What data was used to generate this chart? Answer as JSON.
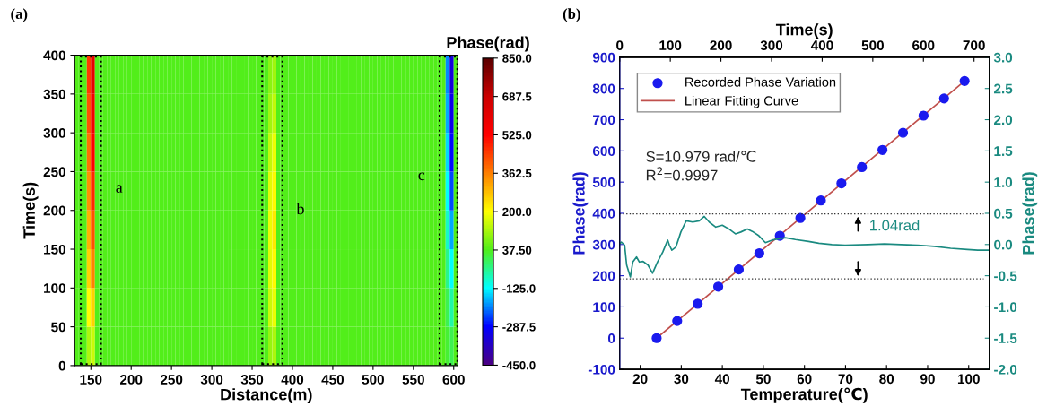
{
  "chart_data": [
    {
      "type": "heatmap",
      "title": "(a)",
      "xlabel": "Distance(m)",
      "ylabel": "Time(s)",
      "clabel": "Phase(rad)",
      "x": [
        132.5,
        137.5,
        142.5,
        147.5,
        152.5,
        157.5,
        162.5,
        167.5,
        172.5,
        177.5,
        182.5,
        187.5,
        192.5,
        197.5,
        202.5,
        207.5,
        212.5,
        217.5,
        222.5,
        227.5,
        232.5,
        237.5,
        242.5,
        247.5,
        252.5,
        257.5,
        262.5,
        267.5,
        272.5,
        277.5,
        282.5,
        287.5,
        292.5,
        297.5,
        302.5,
        307.5,
        312.5,
        317.5,
        322.5,
        327.5,
        332.5,
        337.5,
        342.5,
        347.5,
        352.5,
        357.5,
        362.5,
        367.5,
        372.5,
        377.5,
        382.5,
        387.5,
        392.5,
        397.5,
        402.5,
        407.5,
        412.5,
        417.5,
        422.5,
        427.5,
        432.5,
        437.5,
        442.5,
        447.5,
        452.5,
        457.5,
        462.5,
        467.5,
        472.5,
        477.5,
        482.5,
        487.5,
        492.5,
        497.5,
        502.5,
        507.5,
        512.5,
        517.5,
        522.5,
        527.5,
        532.5,
        537.5,
        542.5,
        547.5,
        552.5,
        557.5,
        562.5,
        567.5,
        572.5,
        577.5,
        582.5,
        587.5,
        592.5,
        597.5,
        602.5
      ],
      "cells": [
        [
          37.5,
          37.5,
          37.5,
          450,
          600,
          37.5,
          37.5,
          37.5,
          37.5,
          37.5,
          37.5,
          37.5,
          37.5,
          37.5,
          37.5,
          37.5,
          37.5,
          37.5,
          37.5,
          37.5,
          37.5,
          37.5,
          37.5,
          37.5,
          37.5,
          37.5,
          37.5,
          37.5,
          37.5,
          37.5,
          37.5,
          37.5,
          37.5,
          37.5,
          37.5,
          37.5,
          37.5,
          37.5,
          37.5,
          37.5,
          37.5,
          37.5,
          37.5,
          37.5,
          37.5,
          37.5,
          37.5,
          37.5,
          90,
          110,
          37.5,
          37.5,
          37.5,
          37.5,
          37.5,
          37.5,
          37.5,
          37.5,
          37.5,
          37.5,
          37.5,
          37.5,
          37.5,
          37.5,
          37.5,
          37.5,
          37.5,
          37.5,
          37.5,
          37.5,
          37.5,
          37.5,
          37.5,
          37.5,
          37.5,
          37.5,
          37.5,
          37.5,
          37.5,
          37.5,
          37.5,
          37.5,
          37.5,
          37.5,
          37.5,
          37.5,
          37.5,
          37.5,
          37.5,
          37.5,
          37.5,
          37.5,
          -200,
          -330,
          37.5
        ],
        [
          37.5,
          37.5,
          37.5,
          420,
          560,
          37.5,
          37.5,
          37.5,
          37.5,
          37.5,
          37.5,
          37.5,
          37.5,
          37.5,
          37.5,
          37.5,
          37.5,
          37.5,
          37.5,
          37.5,
          37.5,
          37.5,
          37.5,
          37.5,
          37.5,
          37.5,
          37.5,
          37.5,
          37.5,
          37.5,
          37.5,
          37.5,
          37.5,
          37.5,
          37.5,
          37.5,
          37.5,
          37.5,
          37.5,
          37.5,
          37.5,
          37.5,
          37.5,
          37.5,
          37.5,
          37.5,
          37.5,
          37.5,
          110,
          140,
          37.5,
          37.5,
          37.5,
          37.5,
          37.5,
          37.5,
          37.5,
          37.5,
          37.5,
          37.5,
          37.5,
          37.5,
          37.5,
          37.5,
          37.5,
          37.5,
          37.5,
          37.5,
          37.5,
          37.5,
          37.5,
          37.5,
          37.5,
          37.5,
          37.5,
          37.5,
          37.5,
          37.5,
          37.5,
          37.5,
          37.5,
          37.5,
          37.5,
          37.5,
          37.5,
          37.5,
          37.5,
          37.5,
          37.5,
          37.5,
          37.5,
          37.5,
          -180,
          -310,
          37.5
        ],
        [
          37.5,
          37.5,
          37.5,
          380,
          520,
          37.5,
          37.5,
          37.5,
          37.5,
          37.5,
          37.5,
          37.5,
          37.5,
          37.5,
          37.5,
          37.5,
          37.5,
          37.5,
          37.5,
          37.5,
          37.5,
          37.5,
          37.5,
          37.5,
          37.5,
          37.5,
          37.5,
          37.5,
          37.5,
          37.5,
          37.5,
          37.5,
          37.5,
          37.5,
          37.5,
          37.5,
          37.5,
          37.5,
          37.5,
          37.5,
          37.5,
          37.5,
          37.5,
          37.5,
          37.5,
          37.5,
          37.5,
          37.5,
          140,
          180,
          37.5,
          37.5,
          37.5,
          37.5,
          37.5,
          37.5,
          37.5,
          37.5,
          37.5,
          37.5,
          37.5,
          37.5,
          37.5,
          37.5,
          37.5,
          37.5,
          37.5,
          37.5,
          37.5,
          37.5,
          37.5,
          37.5,
          37.5,
          37.5,
          37.5,
          37.5,
          37.5,
          37.5,
          37.5,
          37.5,
          37.5,
          37.5,
          37.5,
          37.5,
          37.5,
          37.5,
          37.5,
          37.5,
          37.5,
          37.5,
          37.5,
          37.5,
          -150,
          -280,
          37.5
        ],
        [
          37.5,
          37.5,
          37.5,
          340,
          470,
          37.5,
          37.5,
          37.5,
          37.5,
          37.5,
          37.5,
          37.5,
          37.5,
          37.5,
          37.5,
          37.5,
          37.5,
          37.5,
          37.5,
          37.5,
          37.5,
          37.5,
          37.5,
          37.5,
          37.5,
          37.5,
          37.5,
          37.5,
          37.5,
          37.5,
          37.5,
          37.5,
          37.5,
          37.5,
          37.5,
          37.5,
          37.5,
          37.5,
          37.5,
          37.5,
          37.5,
          37.5,
          37.5,
          37.5,
          37.5,
          37.5,
          37.5,
          37.5,
          170,
          210,
          37.5,
          37.5,
          37.5,
          37.5,
          37.5,
          37.5,
          37.5,
          37.5,
          37.5,
          37.5,
          37.5,
          37.5,
          37.5,
          37.5,
          37.5,
          37.5,
          37.5,
          37.5,
          37.5,
          37.5,
          37.5,
          37.5,
          37.5,
          37.5,
          37.5,
          37.5,
          37.5,
          37.5,
          37.5,
          37.5,
          37.5,
          37.5,
          37.5,
          37.5,
          37.5,
          37.5,
          37.5,
          37.5,
          37.5,
          37.5,
          37.5,
          37.5,
          -120,
          -240,
          37.5
        ],
        [
          37.5,
          37.5,
          37.5,
          300,
          420,
          37.5,
          37.5,
          37.5,
          37.5,
          37.5,
          37.5,
          37.5,
          37.5,
          37.5,
          37.5,
          37.5,
          37.5,
          37.5,
          37.5,
          37.5,
          37.5,
          37.5,
          37.5,
          37.5,
          37.5,
          37.5,
          37.5,
          37.5,
          37.5,
          37.5,
          37.5,
          37.5,
          37.5,
          37.5,
          37.5,
          37.5,
          37.5,
          37.5,
          37.5,
          37.5,
          37.5,
          37.5,
          37.5,
          37.5,
          37.5,
          37.5,
          37.5,
          37.5,
          180,
          230,
          37.5,
          37.5,
          37.5,
          37.5,
          37.5,
          37.5,
          37.5,
          37.5,
          37.5,
          37.5,
          37.5,
          37.5,
          37.5,
          37.5,
          37.5,
          37.5,
          37.5,
          37.5,
          37.5,
          37.5,
          37.5,
          37.5,
          37.5,
          37.5,
          37.5,
          37.5,
          37.5,
          37.5,
          37.5,
          37.5,
          37.5,
          37.5,
          37.5,
          37.5,
          37.5,
          37.5,
          37.5,
          37.5,
          37.5,
          37.5,
          37.5,
          37.5,
          -80,
          -180,
          37.5
        ],
        [
          37.5,
          37.5,
          37.5,
          260,
          360,
          37.5,
          37.5,
          37.5,
          37.5,
          37.5,
          37.5,
          37.5,
          37.5,
          37.5,
          37.5,
          37.5,
          37.5,
          37.5,
          37.5,
          37.5,
          37.5,
          37.5,
          37.5,
          37.5,
          37.5,
          37.5,
          37.5,
          37.5,
          37.5,
          37.5,
          37.5,
          37.5,
          37.5,
          37.5,
          37.5,
          37.5,
          37.5,
          37.5,
          37.5,
          37.5,
          37.5,
          37.5,
          37.5,
          37.5,
          37.5,
          37.5,
          37.5,
          37.5,
          170,
          210,
          37.5,
          37.5,
          37.5,
          37.5,
          37.5,
          37.5,
          37.5,
          37.5,
          37.5,
          37.5,
          37.5,
          37.5,
          37.5,
          37.5,
          37.5,
          37.5,
          37.5,
          37.5,
          37.5,
          37.5,
          37.5,
          37.5,
          37.5,
          37.5,
          37.5,
          37.5,
          37.5,
          37.5,
          37.5,
          37.5,
          37.5,
          37.5,
          37.5,
          37.5,
          37.5,
          37.5,
          37.5,
          37.5,
          37.5,
          37.5,
          37.5,
          37.5,
          -40,
          -120,
          37.5
        ],
        [
          37.5,
          37.5,
          37.5,
          200,
          260,
          37.5,
          37.5,
          37.5,
          37.5,
          37.5,
          37.5,
          37.5,
          37.5,
          37.5,
          37.5,
          37.5,
          37.5,
          37.5,
          37.5,
          37.5,
          37.5,
          37.5,
          37.5,
          37.5,
          37.5,
          37.5,
          37.5,
          37.5,
          37.5,
          37.5,
          37.5,
          37.5,
          37.5,
          37.5,
          37.5,
          37.5,
          37.5,
          37.5,
          37.5,
          37.5,
          37.5,
          37.5,
          37.5,
          37.5,
          37.5,
          37.5,
          37.5,
          37.5,
          150,
          180,
          37.5,
          37.5,
          37.5,
          37.5,
          37.5,
          37.5,
          37.5,
          37.5,
          37.5,
          37.5,
          37.5,
          37.5,
          37.5,
          37.5,
          37.5,
          37.5,
          37.5,
          37.5,
          37.5,
          37.5,
          37.5,
          37.5,
          37.5,
          37.5,
          37.5,
          37.5,
          37.5,
          37.5,
          37.5,
          37.5,
          37.5,
          37.5,
          37.5,
          37.5,
          37.5,
          37.5,
          37.5,
          37.5,
          37.5,
          37.5,
          37.5,
          37.5,
          0,
          -60,
          37.5
        ],
        [
          37.5,
          37.5,
          37.5,
          120,
          150,
          37.5,
          37.5,
          37.5,
          37.5,
          37.5,
          37.5,
          37.5,
          37.5,
          37.5,
          37.5,
          37.5,
          37.5,
          37.5,
          37.5,
          37.5,
          37.5,
          37.5,
          37.5,
          37.5,
          37.5,
          37.5,
          37.5,
          37.5,
          37.5,
          37.5,
          37.5,
          37.5,
          37.5,
          37.5,
          37.5,
          37.5,
          37.5,
          37.5,
          37.5,
          37.5,
          37.5,
          37.5,
          37.5,
          37.5,
          37.5,
          37.5,
          37.5,
          37.5,
          100,
          120,
          37.5,
          37.5,
          37.5,
          37.5,
          37.5,
          37.5,
          37.5,
          37.5,
          37.5,
          37.5,
          37.5,
          37.5,
          37.5,
          37.5,
          37.5,
          37.5,
          37.5,
          37.5,
          37.5,
          37.5,
          37.5,
          37.5,
          37.5,
          37.5,
          37.5,
          37.5,
          37.5,
          37.5,
          37.5,
          37.5,
          37.5,
          37.5,
          37.5,
          37.5,
          37.5,
          37.5,
          37.5,
          37.5,
          37.5,
          37.5,
          37.5,
          37.5,
          20,
          0,
          37.5
        ]
      ],
      "colors": [
        "#4b0082",
        "#0000ff",
        "#00ffff",
        "#50ee1a",
        "#ffff00",
        "#ff8000",
        "#ff0000",
        "#cc0000",
        "#5a0000"
      ],
      "clim": [
        -450,
        850
      ],
      "cticks": [
        {
          "value": 850,
          "label": "850.0"
        },
        {
          "value": 687.5,
          "label": "687.5"
        },
        {
          "value": 525,
          "label": "525.0"
        },
        {
          "value": 362.5,
          "label": "362.5"
        },
        {
          "value": 200,
          "label": "200.0"
        },
        {
          "value": 37.5,
          "label": "37.50"
        },
        {
          "value": -125,
          "label": "-125.0"
        },
        {
          "value": -287.5,
          "label": "-287.5"
        },
        {
          "value": -450,
          "label": "-450.0"
        }
      ],
      "xlim": [
        130,
        605
      ],
      "xticks": [
        150,
        200,
        250,
        300,
        350,
        400,
        450,
        500,
        550,
        600
      ],
      "ylim": [
        0,
        400
      ],
      "yticks": [
        0,
        50,
        100,
        150,
        200,
        250,
        300,
        350,
        400
      ],
      "annotations": [
        "a",
        "b",
        "c"
      ]
    },
    {
      "type": "scatter",
      "title": "(b)",
      "xlabel": "Temperature(℃)",
      "ylabel": "Phase(rad)",
      "y2label": "Phase(rad)",
      "x2label": "Time(s)",
      "xlim": [
        15,
        105
      ],
      "xticks": [
        20,
        30,
        40,
        50,
        60,
        70,
        80,
        90,
        100
      ],
      "ylim": [
        -100,
        900
      ],
      "yticks": [
        -100,
        0,
        100,
        200,
        300,
        400,
        500,
        600,
        700,
        800,
        900
      ],
      "x2lim": [
        0,
        730
      ],
      "x2ticks": [
        0,
        100,
        200,
        300,
        400,
        500,
        600,
        700
      ],
      "y2lim": [
        -2,
        3
      ],
      "y2ticks": [
        {
          "value": -2,
          "label": "-2.0"
        },
        {
          "value": -1.5,
          "label": "-1.5"
        },
        {
          "value": -1,
          "label": "-1.0"
        },
        {
          "value": -0.5,
          "label": "-0.5"
        },
        {
          "value": 0,
          "label": "0.0"
        },
        {
          "value": 0.5,
          "label": "0.5"
        },
        {
          "value": 1,
          "label": "1.0"
        },
        {
          "value": 1.5,
          "label": "1.5"
        },
        {
          "value": 2,
          "label": "2.0"
        },
        {
          "value": 2.5,
          "label": "2.5"
        },
        {
          "value": 3,
          "label": "3.0"
        }
      ],
      "legend": "top left",
      "marker": "circle",
      "grid": false,
      "series": [
        {
          "type": "scatter",
          "name": "Recorded Phase Variation",
          "color": "#1a1aee",
          "x": [
            24,
            29,
            34,
            39,
            44,
            49,
            54,
            59,
            64,
            69,
            74,
            79,
            84,
            89,
            94,
            99
          ],
          "values": [
            0,
            55,
            110,
            165,
            220,
            272,
            328,
            385,
            441,
            496,
            548,
            603,
            658,
            713,
            768,
            824
          ]
        },
        {
          "type": "line",
          "name": "Linear Fitting Curve",
          "color": "#c0504d",
          "marker": "none",
          "x": [
            24,
            99
          ],
          "values": [
            0,
            824
          ]
        },
        {
          "type": "line",
          "axis": "y2",
          "color": "#1a8a80",
          "marker": "none",
          "x": [
            15.0,
            15.4,
            16.2,
            16.7,
            17.6,
            18.2,
            19.1,
            19.8,
            20.7,
            21.9,
            23.0,
            24.2,
            25.5,
            26.7,
            27.1,
            27.7,
            28.7,
            29.9,
            31.2,
            32.8,
            34.4,
            35.6,
            36.8,
            38.4,
            40.0,
            41.6,
            43.2,
            44.5,
            46.1,
            47.3,
            48.9,
            50.5,
            52.1,
            53.7,
            55.3,
            57.8,
            61.0,
            63.5,
            66.7,
            69.9,
            75.5,
            79.5,
            83.5,
            87.6,
            91.6,
            95.6,
            99.7,
            102.2,
            104.9
          ],
          "values": [
            0.01,
            0.04,
            -0.01,
            -0.33,
            -0.52,
            -0.28,
            -0.2,
            -0.28,
            -0.27,
            -0.33,
            -0.46,
            -0.28,
            -0.12,
            0.07,
            -0.01,
            -0.09,
            -0.04,
            0.2,
            0.38,
            0.36,
            0.38,
            0.45,
            0.36,
            0.28,
            0.31,
            0.25,
            0.17,
            0.2,
            0.25,
            0.21,
            0.14,
            0.03,
            0.07,
            0.09,
            0.11,
            0.08,
            0.05,
            0.02,
            0.0,
            -0.01,
            0.0,
            0.01,
            0.0,
            -0.01,
            -0.03,
            -0.06,
            -0.08,
            -0.09,
            -0.09
          ]
        }
      ],
      "ref_lines": [
        {
          "axis": "y2",
          "value": 0.49,
          "color": "#333333",
          "line_style": "dotted"
        },
        {
          "axis": "y2",
          "value": -0.55,
          "color": "#333333",
          "line_style": "dotted"
        }
      ],
      "annotations": [
        "S=10.979 rad/℃",
        "R$^{2}$=0.9997",
        "1.04rad"
      ]
    }
  ]
}
